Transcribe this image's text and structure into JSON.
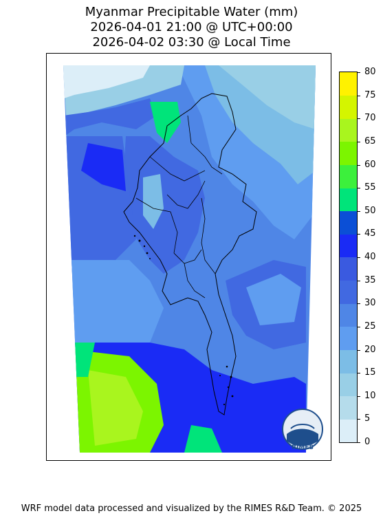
{
  "title": {
    "line1": "Myanmar Precipitable Water (mm)",
    "line2": "2026-04-01 21:00 @ UTC+00:00",
    "line3": "2026-04-02 03:30 @ Local Time"
  },
  "colorbar": {
    "levels": [
      0,
      5,
      10,
      15,
      20,
      25,
      30,
      35,
      40,
      45,
      50,
      55,
      60,
      65,
      70,
      75,
      80
    ],
    "tick_labels": [
      "0",
      "5",
      "10",
      "15",
      "20",
      "25",
      "30",
      "35",
      "40",
      "45",
      "50",
      "55",
      "60",
      "65",
      "70",
      "75",
      "80"
    ],
    "colors": [
      "#dceef8",
      "#b5dceb",
      "#99cfe6",
      "#7cbde6",
      "#5f9df0",
      "#4f86e6",
      "#4169e1",
      "#3a5ae0",
      "#1a2bf5",
      "#0b4fd6",
      "#00e47a",
      "#3cf03c",
      "#7cf500",
      "#a9f51e",
      "#d4f500",
      "#fff200",
      "#ffcc00"
    ]
  },
  "logo": {
    "text": "RIMES",
    "icon": "rimes-logo-icon"
  },
  "footer": "WRF model data processed and visualized by the RIMES R&D Team. © 2025"
}
